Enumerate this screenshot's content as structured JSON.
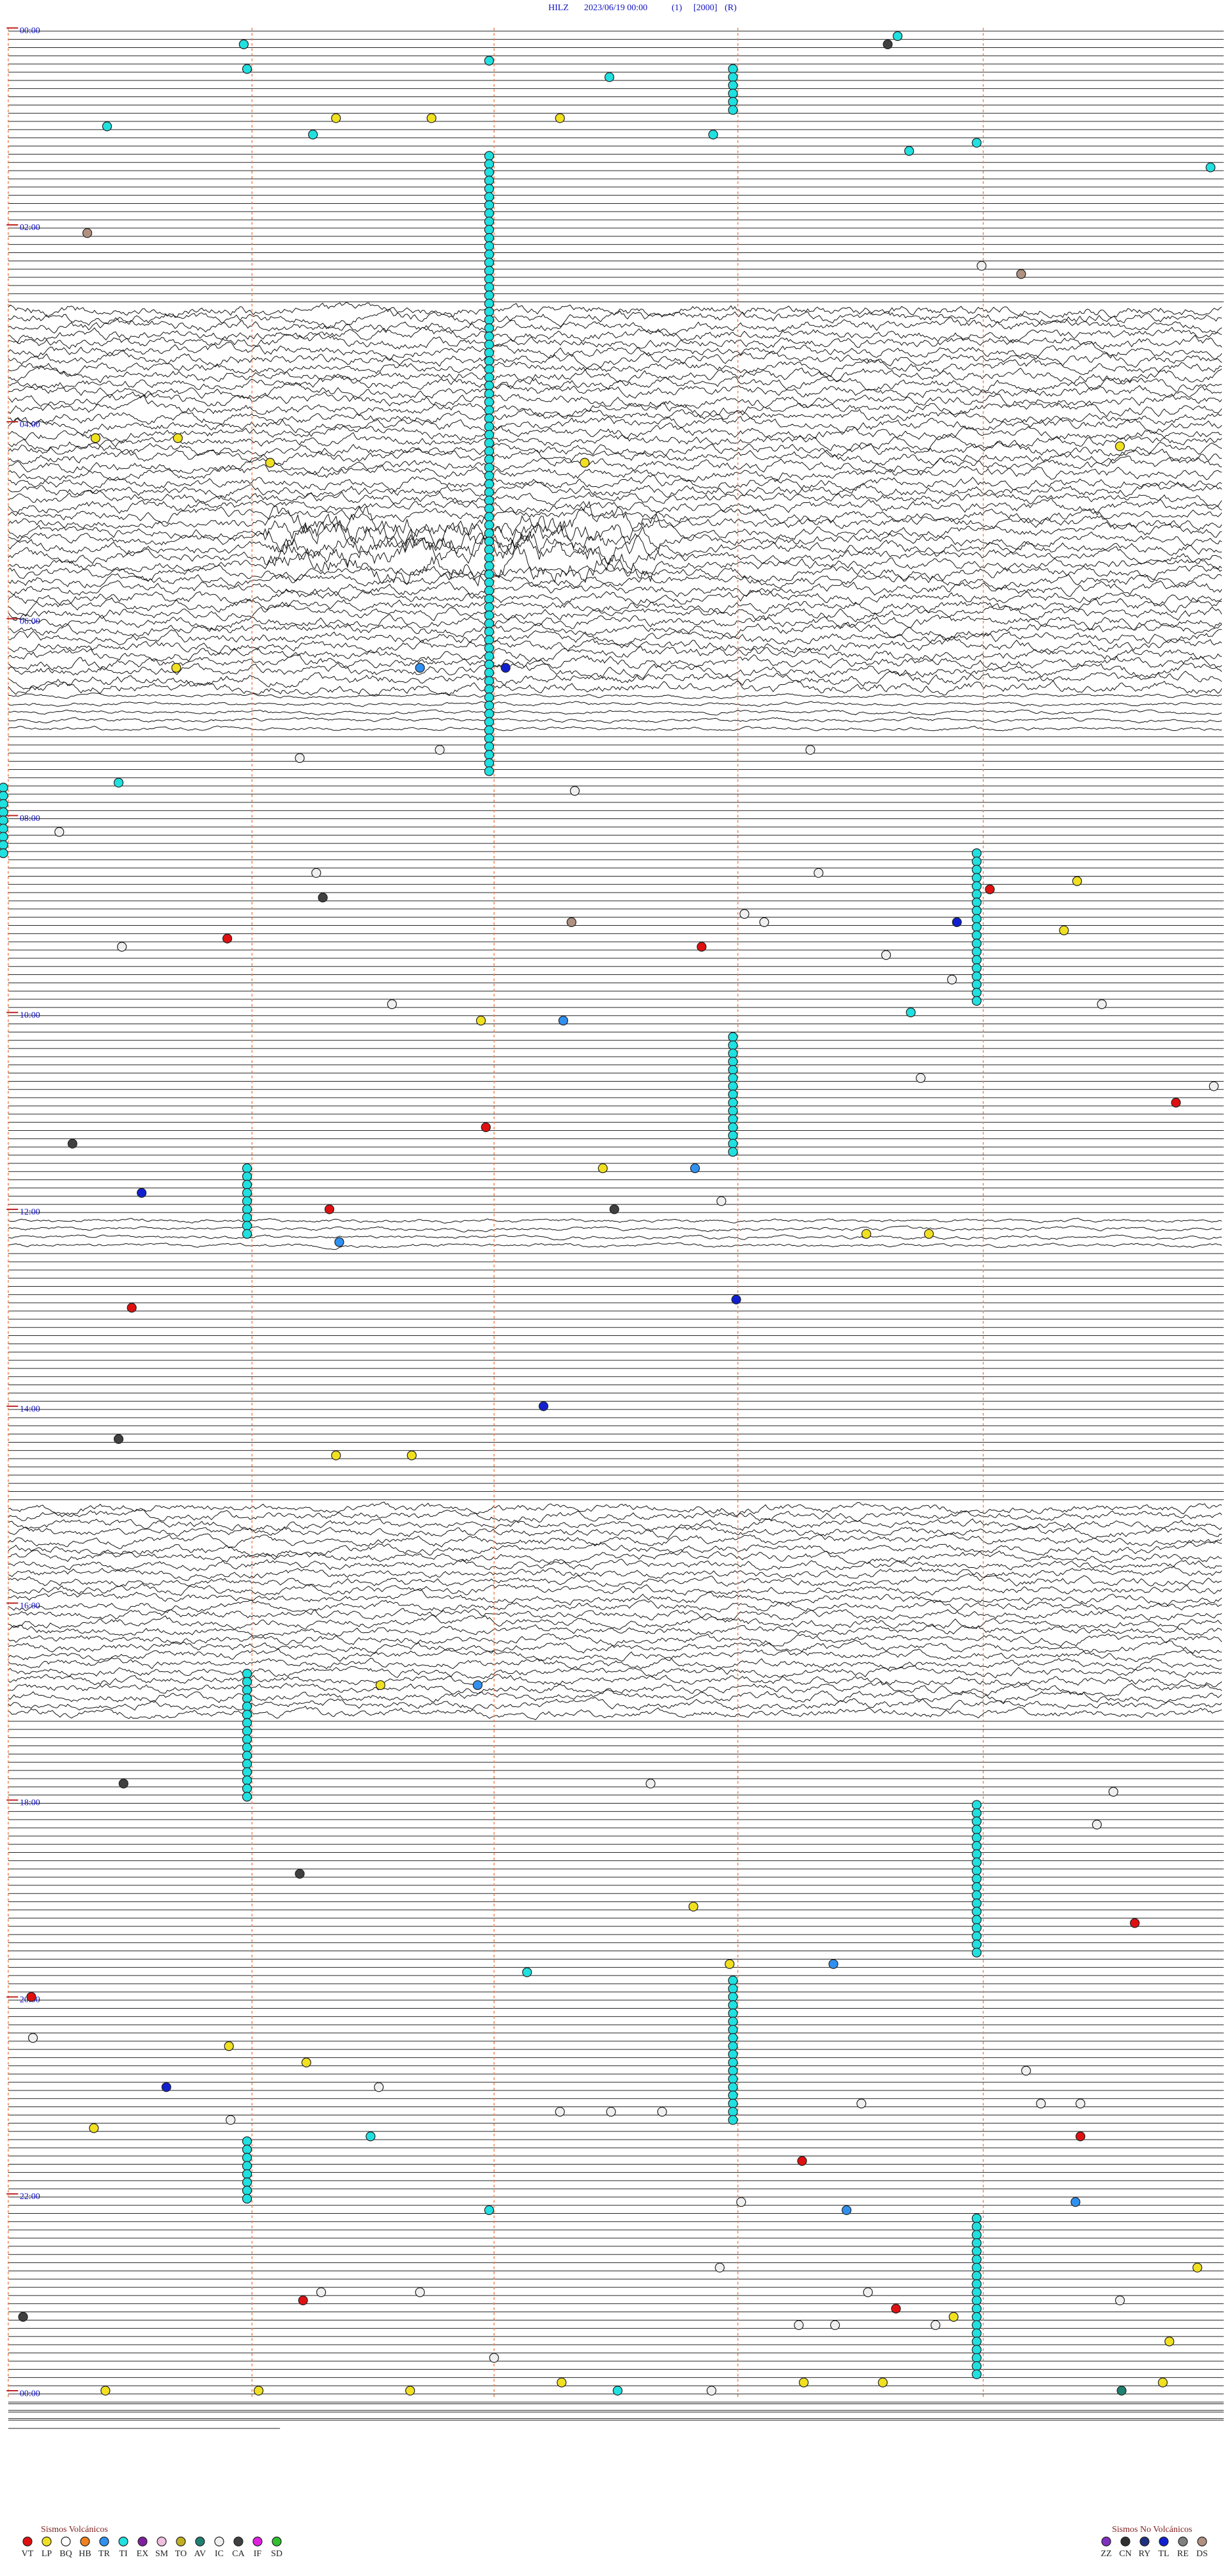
{
  "header": {
    "station": "HILZ",
    "datetime": "2023/06/19 00:00",
    "channel": "(1)",
    "scale": "[2000]",
    "mode": "(R)"
  },
  "time_labels": [
    "00:00",
    "02:00",
    "04:00",
    "06:00",
    "08:00",
    "10:00",
    "12:00",
    "14:00",
    "16:00",
    "18:00",
    "20:00",
    "22:00",
    "00:00"
  ],
  "legend": {
    "volcanic": {
      "title": "Sismos Volcánicos",
      "items": [
        {
          "code": "VT",
          "color": "#e01010"
        },
        {
          "code": "LP",
          "color": "#f0e020"
        },
        {
          "code": "BQ",
          "color": "#ffffff"
        },
        {
          "code": "HB",
          "color": "#f08020"
        },
        {
          "code": "TR",
          "color": "#3090f0"
        },
        {
          "code": "TI",
          "color": "#20e0e0"
        },
        {
          "code": "EX",
          "color": "#8020a0"
        },
        {
          "code": "SM",
          "color": "#f0c0e0"
        },
        {
          "code": "TO",
          "color": "#c0b020"
        },
        {
          "code": "AV",
          "color": "#208070"
        },
        {
          "code": "IC",
          "color": "#f0f0f0"
        },
        {
          "code": "CA",
          "color": "#404040"
        },
        {
          "code": "IF",
          "color": "#e020e0"
        },
        {
          "code": "SD",
          "color": "#30c030"
        }
      ]
    },
    "non_volcanic": {
      "title": "Sismos No Volcánicos",
      "items": [
        {
          "code": "ZZ",
          "color": "#8030c0"
        },
        {
          "code": "CN",
          "color": "#303030"
        },
        {
          "code": "RY",
          "color": "#203080"
        },
        {
          "code": "TL",
          "color": "#1020d0"
        },
        {
          "code": "RE",
          "color": "#808080"
        },
        {
          "code": "DS",
          "color": "#b09080"
        }
      ]
    }
  }
}
